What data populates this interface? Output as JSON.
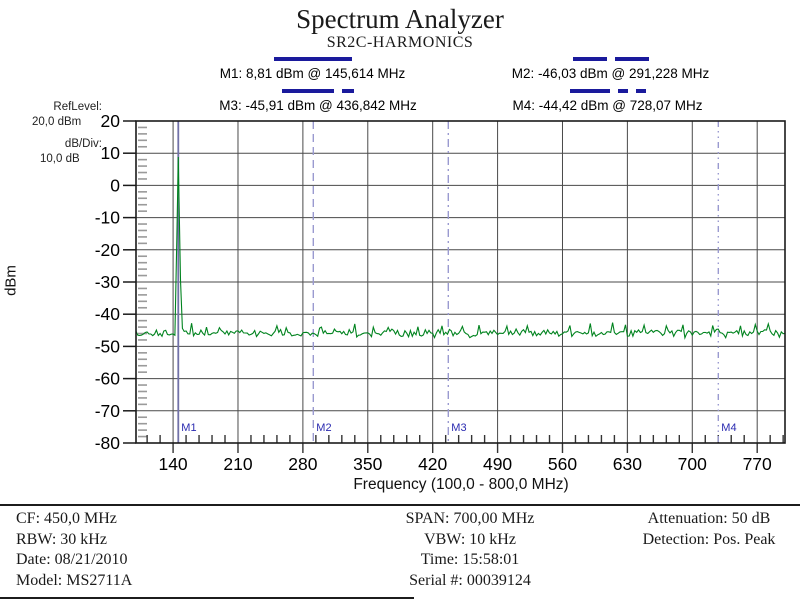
{
  "title": "Spectrum Analyzer",
  "subtitle": "SR2C-HARMONICS",
  "markers": [
    {
      "id": "M1",
      "readout": "M1: 8,81 dBm @ 145,614 MHz",
      "freq_mhz": 145.614,
      "level_dbm": 8.81,
      "line_style": "solid"
    },
    {
      "id": "M2",
      "readout": "M2: -46,03 dBm @ 291,228 MHz",
      "freq_mhz": 291.228,
      "level_dbm": -46.03,
      "line_style": "dashed"
    },
    {
      "id": "M3",
      "readout": "M3: -45,91 dBm @ 436,842 MHz",
      "freq_mhz": 436.842,
      "level_dbm": -45.91,
      "line_style": "dash-dot"
    },
    {
      "id": "M4",
      "readout": "M4: -44,42 dBm @ 728,07 MHz",
      "freq_mhz": 728.07,
      "level_dbm": -44.42,
      "line_style": "dash-dot-dot"
    }
  ],
  "left_panel": {
    "ref_level_label": "RefLevel:",
    "ref_level_value": "20,0 dBm",
    "db_div_label": "dB/Div:",
    "db_div_value": "10,0 dB"
  },
  "y_axis": {
    "label": "dBm"
  },
  "x_axis": {
    "label": "Frequency (100,0 - 800,0 MHz)"
  },
  "footer": {
    "left": [
      "CF: 450,0 MHz",
      "RBW: 30 kHz",
      "Date: 08/21/2010",
      "Model: MS2711A"
    ],
    "center": [
      "SPAN: 700,00 MHz",
      "VBW: 10 kHz",
      "Time: 15:58:01",
      "Serial #: 00039124"
    ],
    "right": [
      "Attenuation: 50 dB",
      "Detection: Pos. Peak"
    ]
  },
  "colors": {
    "trace": "#00831e",
    "marker_legend": "#1a1a9c",
    "marker_line_solid": "#7171a8",
    "marker_line_dashed": "#9a9ad0",
    "marker_label": "#2a2ab0",
    "grid": "#4a4a4a",
    "minor_tick_y": "#9a9a9a",
    "minor_tick_x": "#333333",
    "border": "#1a1a1a"
  },
  "chart_data": {
    "type": "line",
    "title": "Spectrum Analyzer",
    "subtitle": "SR2C-HARMONICS",
    "xlabel": "Frequency (100,0 - 800,0 MHz)",
    "ylabel": "dBm",
    "xlim": [
      100,
      800
    ],
    "ylim": [
      -80,
      20
    ],
    "x_ticks": [
      140,
      210,
      280,
      350,
      420,
      490,
      560,
      630,
      700,
      770
    ],
    "y_ticks": [
      20,
      10,
      0,
      -10,
      -20,
      -30,
      -40,
      -50,
      -60,
      -70,
      -80
    ],
    "x_minor_step_mhz": 14,
    "y_minor_step_db": 2,
    "grid": true,
    "series": [
      {
        "name": "trace",
        "noise_floor_dbm": -45.8,
        "noise_jitter_db": 1.25,
        "noise_seed": 20100821,
        "sample_step_mhz": 2,
        "peak": {
          "freq_mhz": 145.614,
          "level_dbm": 8.81,
          "skirt_db_per_mhz": 16
        },
        "spurs": [
          [
            160,
            -42.8
          ],
          [
            176,
            -44.0
          ],
          [
            190,
            -44.2
          ],
          [
            213,
            -43.9
          ],
          [
            252,
            -43.6
          ],
          [
            262,
            -44.2
          ],
          [
            300,
            -44.0
          ],
          [
            315,
            -43.8
          ],
          [
            336,
            -43.0
          ],
          [
            356,
            -44.0
          ],
          [
            372,
            -44.1
          ],
          [
            404,
            -43.9
          ],
          [
            430,
            -43.6
          ],
          [
            452,
            -43.8
          ],
          [
            470,
            -43.4
          ],
          [
            500,
            -43.7
          ],
          [
            522,
            -43.6
          ],
          [
            543,
            -43.9
          ],
          [
            568,
            -43.5
          ],
          [
            590,
            -42.9
          ],
          [
            603,
            -43.2
          ],
          [
            614,
            -42.6
          ],
          [
            628,
            -43.3
          ],
          [
            648,
            -43.4
          ],
          [
            672,
            -43.6
          ],
          [
            690,
            -43.3
          ],
          [
            705,
            -43.8
          ],
          [
            722,
            -43.5
          ],
          [
            737,
            -43.3
          ],
          [
            752,
            -43.6
          ],
          [
            768,
            -43.2
          ],
          [
            782,
            -43.0
          ]
        ]
      }
    ],
    "markers": [
      {
        "id": "M1",
        "freq_mhz": 145.614,
        "level_dbm": 8.81,
        "line_style": "solid"
      },
      {
        "id": "M2",
        "freq_mhz": 291.228,
        "level_dbm": -46.03,
        "line_style": "dashed"
      },
      {
        "id": "M3",
        "freq_mhz": 436.842,
        "level_dbm": -45.91,
        "line_style": "dash-dot"
      },
      {
        "id": "M4",
        "freq_mhz": 728.07,
        "level_dbm": -44.42,
        "line_style": "dash-dot-dot"
      }
    ]
  }
}
